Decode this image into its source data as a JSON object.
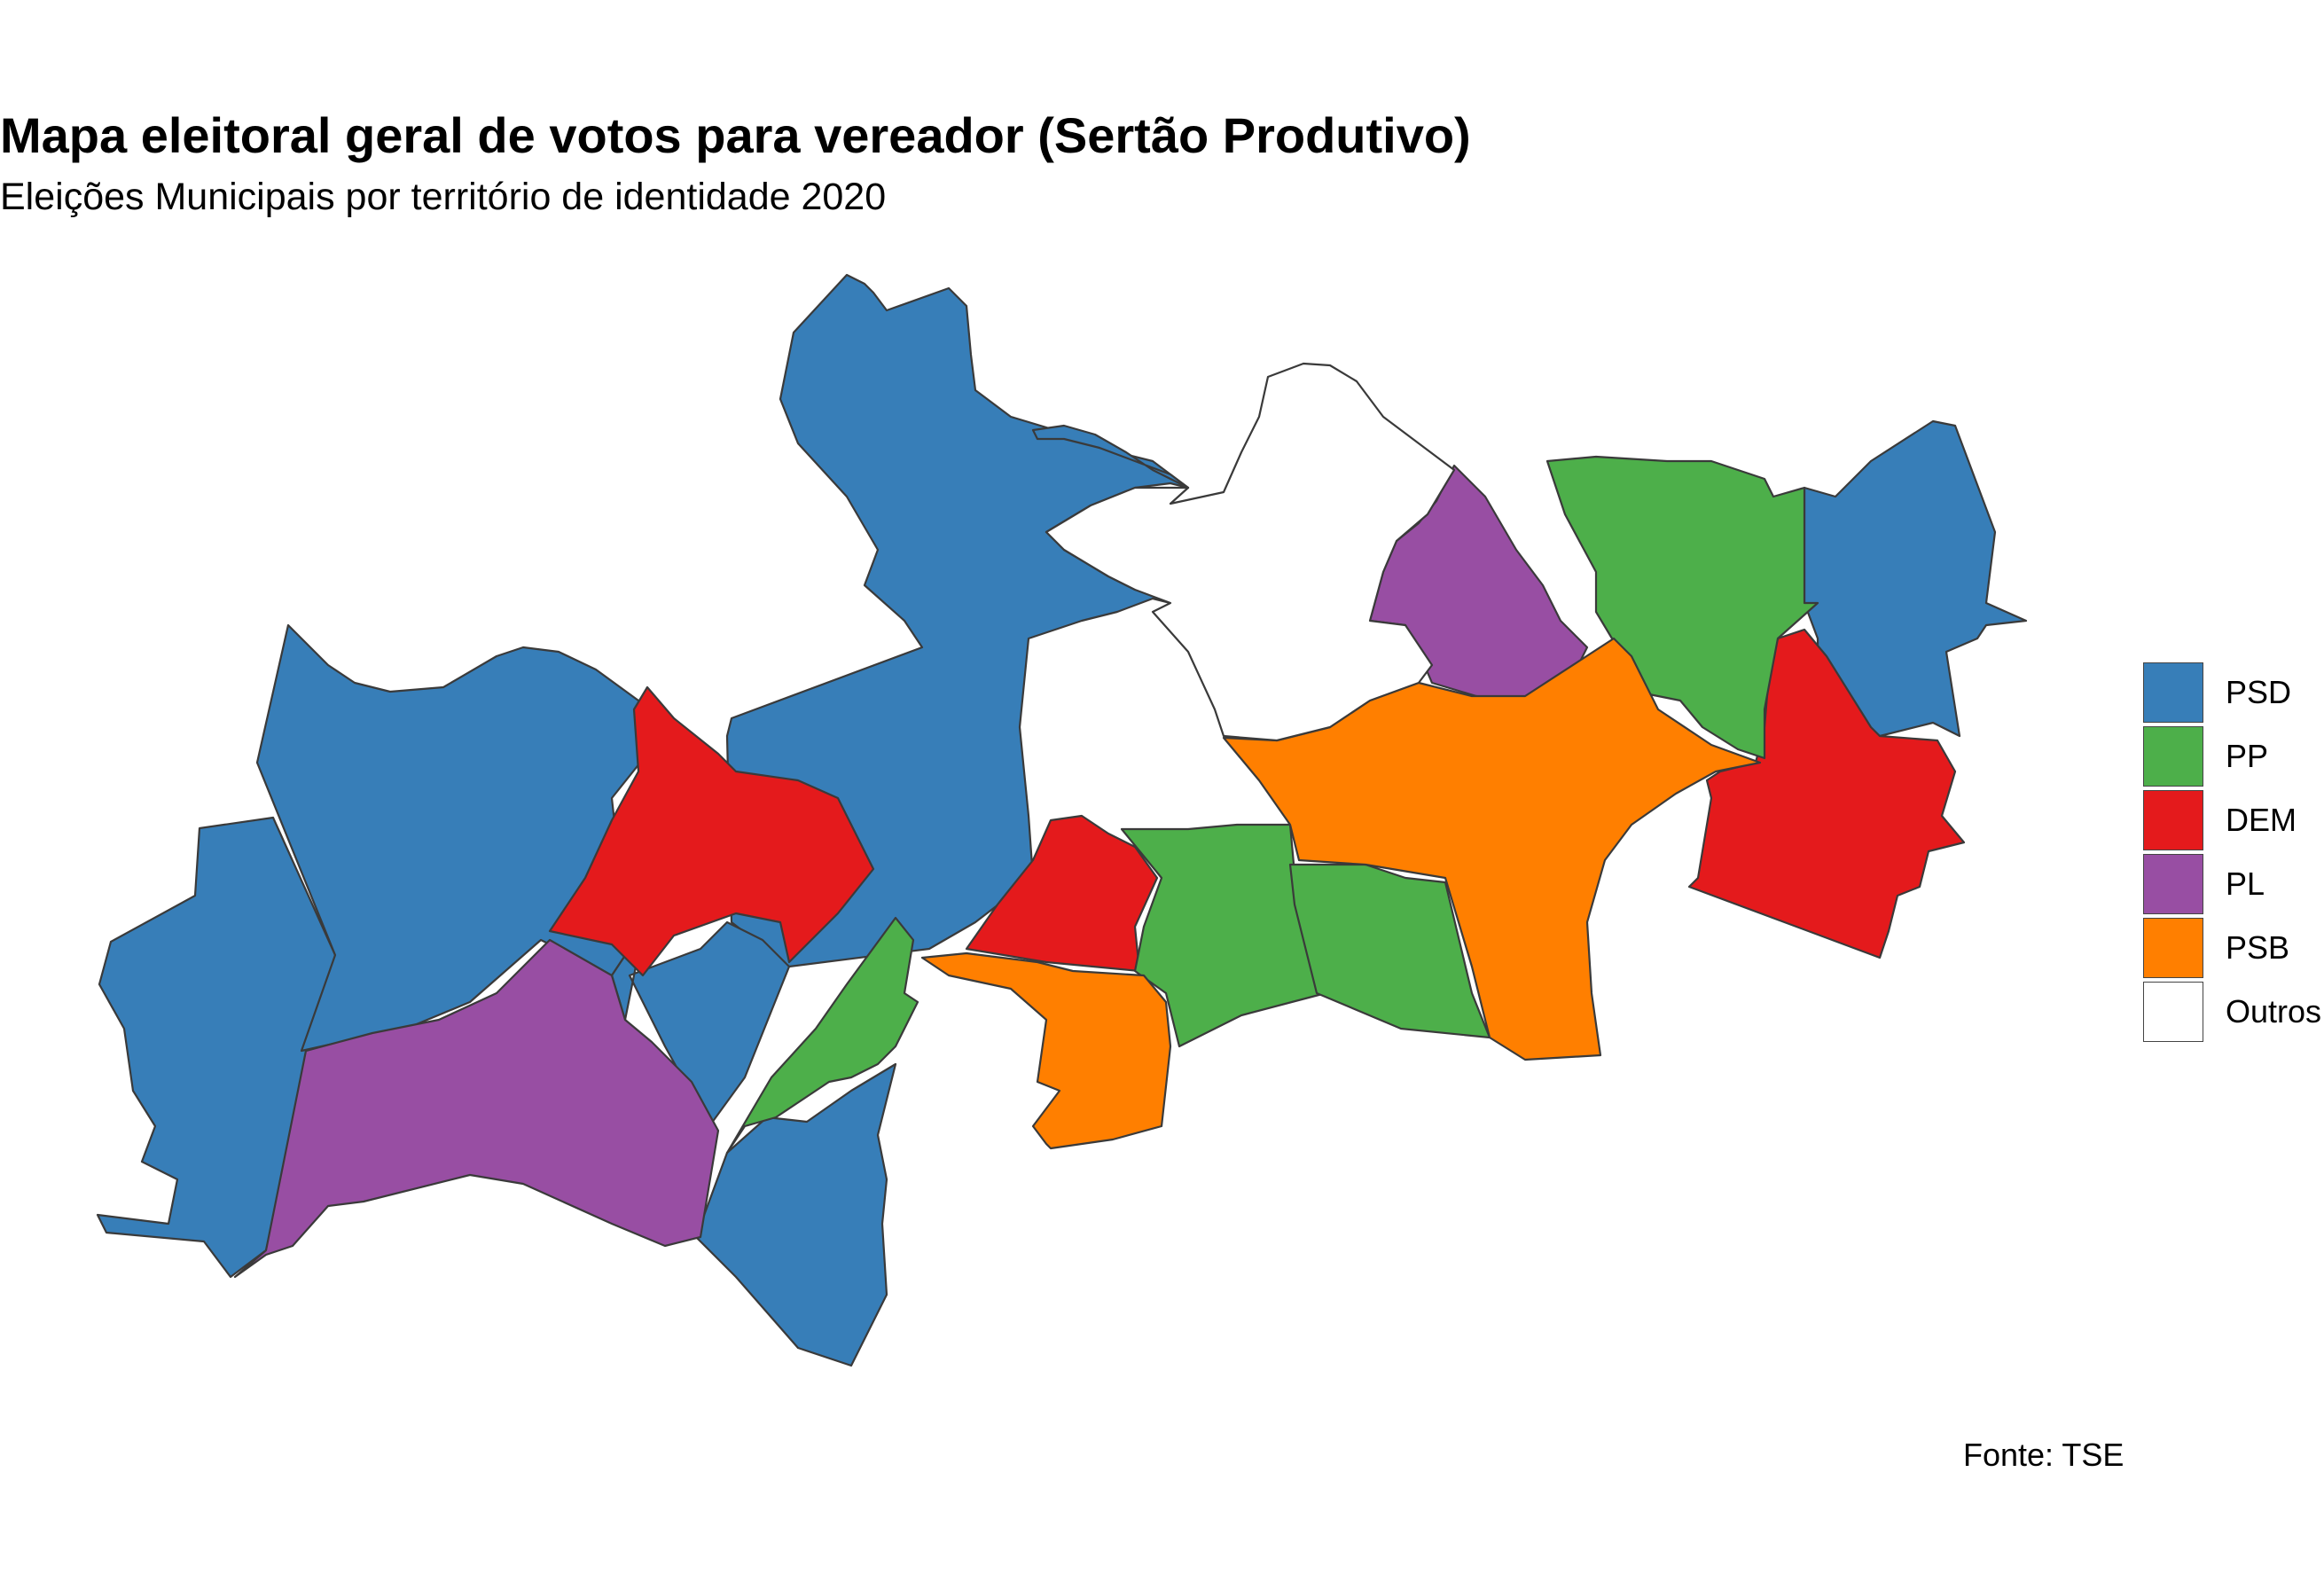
{
  "title": "Mapa eleitoral geral de votos para vereador (Sertão Produtivo)",
  "subtitle": "Eleições Municipais por território de identidade 2020",
  "caption": "Fonte: TSE",
  "legend": [
    {
      "label": "PSD",
      "color": "#377EB8"
    },
    {
      "label": "PP",
      "color": "#4DAF4A"
    },
    {
      "label": "DEM",
      "color": "#E41A1C"
    },
    {
      "label": "PL",
      "color": "#984EA3"
    },
    {
      "label": "PSB",
      "color": "#FF7F00"
    },
    {
      "label": "Outros",
      "color": "#FFFFFF"
    }
  ],
  "map": {
    "regions": [
      {
        "party": "PSD"
      },
      {
        "party": "PSD"
      },
      {
        "party": "PSD"
      },
      {
        "party": "PSD"
      },
      {
        "party": "PSD"
      },
      {
        "party": "PSD"
      },
      {
        "party": "PSD"
      },
      {
        "party": "DEM"
      },
      {
        "party": "DEM"
      },
      {
        "party": "DEM"
      },
      {
        "party": "PL"
      },
      {
        "party": "PL"
      },
      {
        "party": "PP"
      },
      {
        "party": "PP"
      },
      {
        "party": "PP"
      },
      {
        "party": "PP"
      },
      {
        "party": "PSB"
      },
      {
        "party": "PSB"
      },
      {
        "party": "Outros"
      }
    ]
  }
}
